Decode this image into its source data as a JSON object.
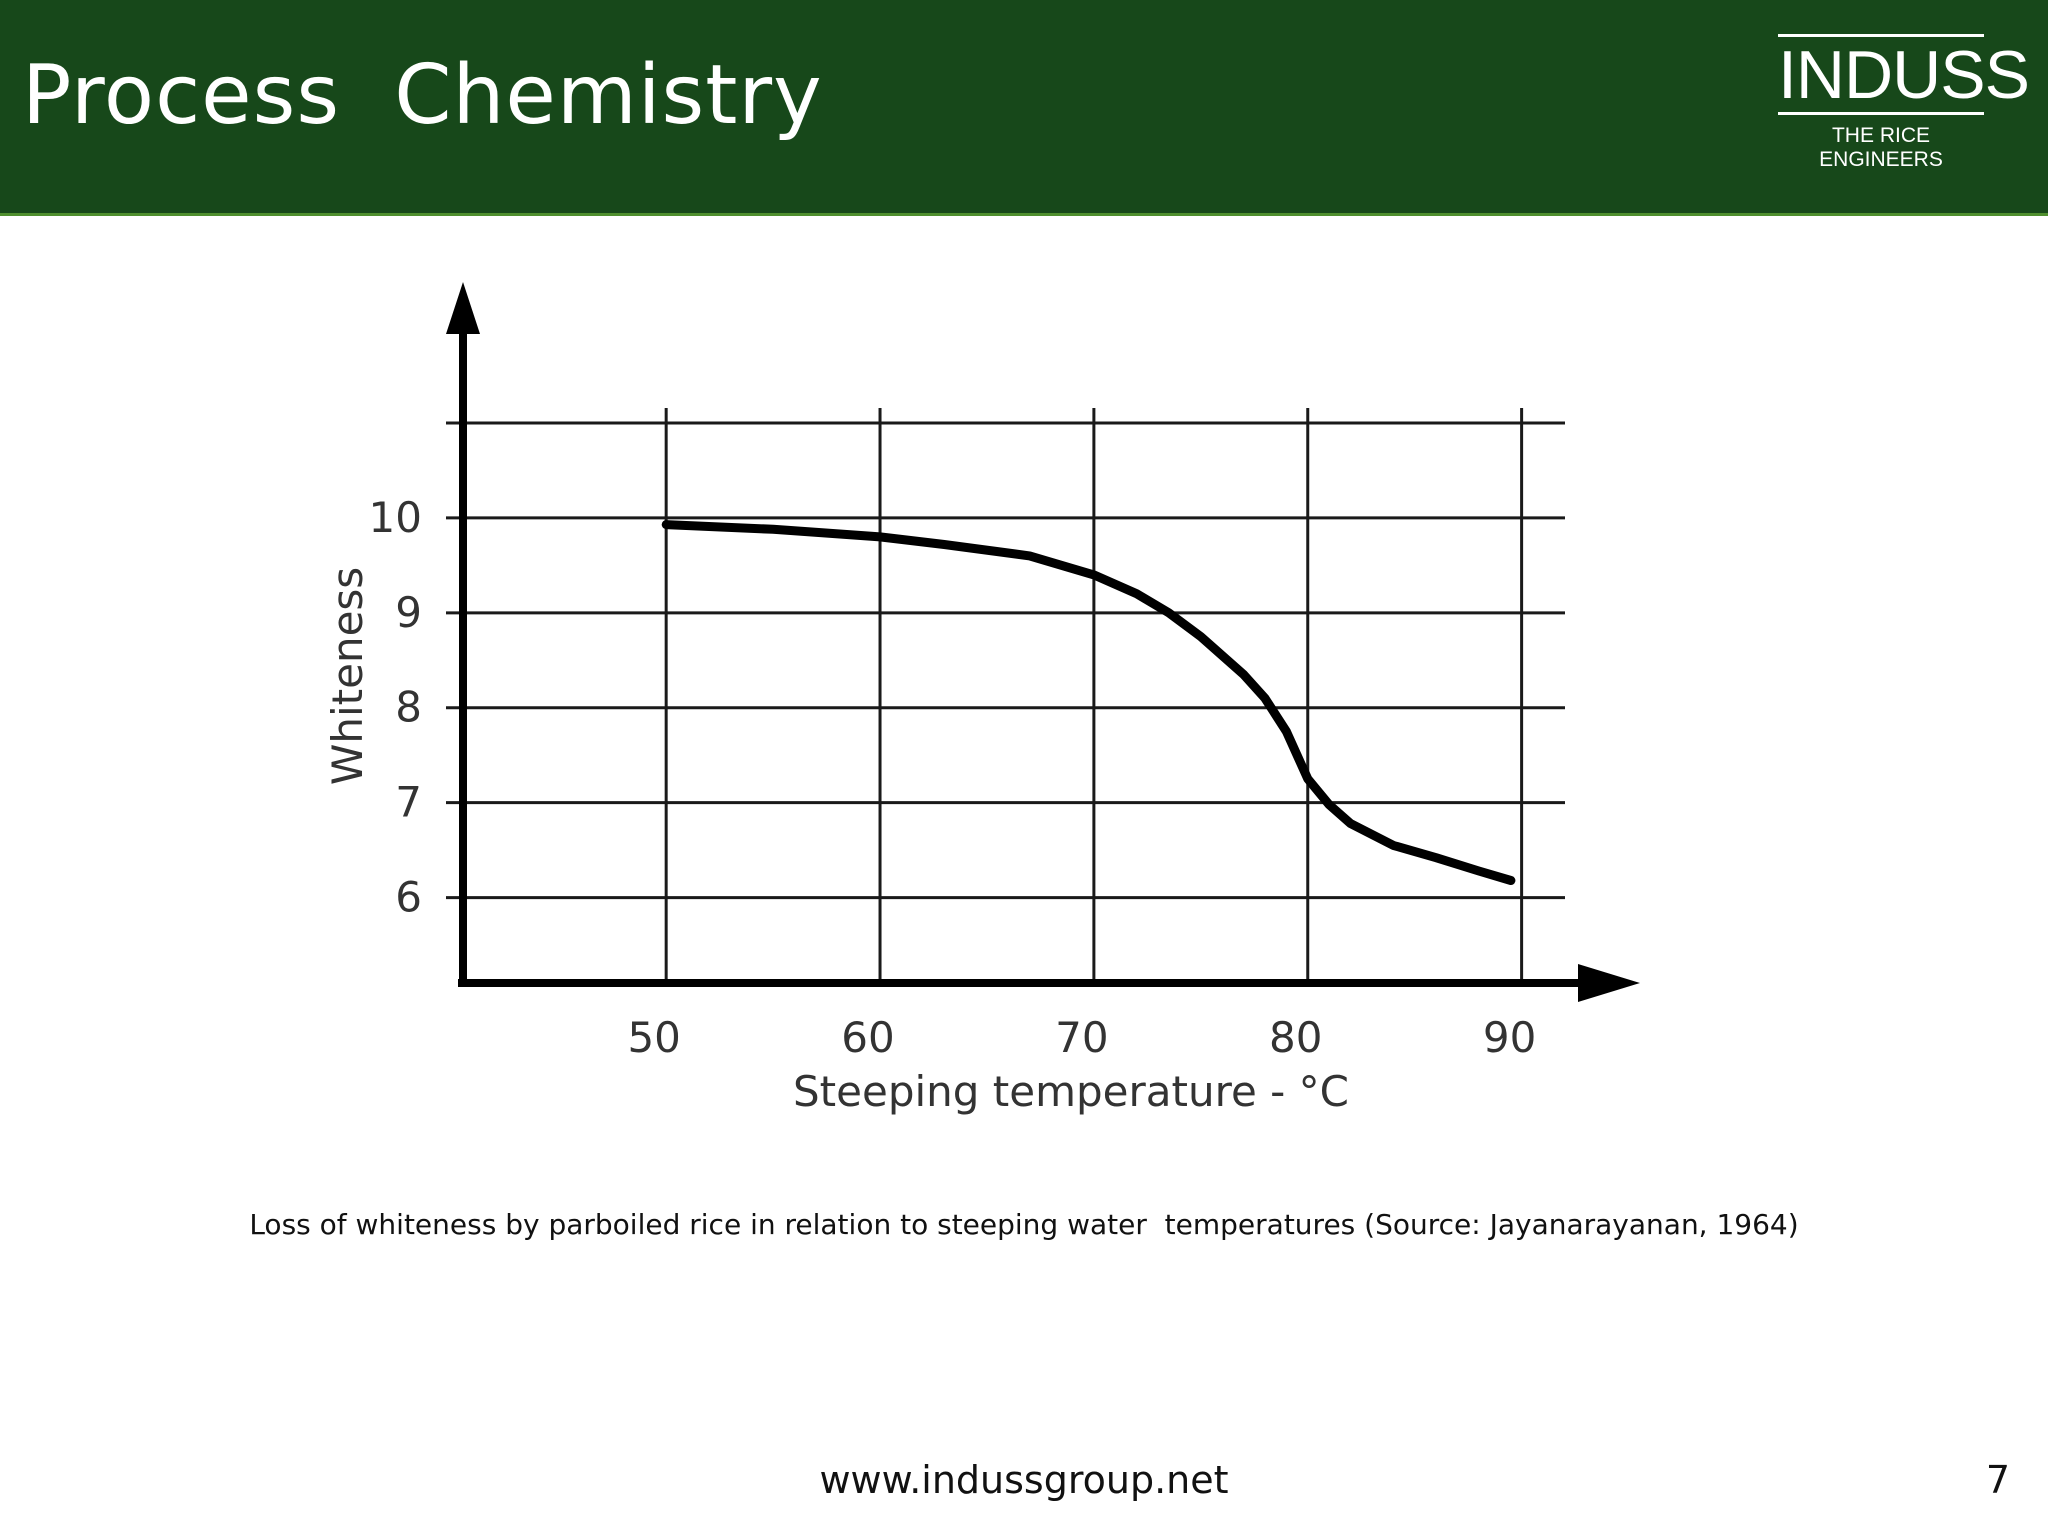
{
  "slide": {
    "title": "Process  Chemistry",
    "logo_name": "INDUSS",
    "logo_tagline": "THE RICE ENGINEERS",
    "caption": "Loss of whiteness by parboiled rice in relation to steeping water  temperatures (Source: Jayanarayanan, 1964)",
    "footer_url": "www.indussgroup.net",
    "page_number": "7"
  },
  "colors": {
    "header_bg": "#17481a",
    "header_border": "#4f8f2e",
    "text": "#111111",
    "axis_labels": "#333333"
  },
  "chart_data": {
    "type": "line",
    "title": "",
    "xlabel": "Steeping temperature - °C",
    "ylabel": "Whiteness",
    "xlim": [
      40.5,
      91
    ],
    "ylim": [
      5.1,
      11
    ],
    "x_ticks": [
      50,
      60,
      70,
      80,
      90
    ],
    "y_ticks": [
      6,
      7,
      8,
      9,
      10
    ],
    "x_gridlines": [
      50,
      60,
      70,
      80,
      90
    ],
    "y_gridlines": [
      6,
      7,
      8,
      9,
      10,
      11
    ],
    "grid": true,
    "series": [
      {
        "x": [
          50,
          55,
          60,
          63,
          67,
          70,
          72,
          73.5,
          75,
          77,
          78,
          79,
          80,
          81,
          82,
          84,
          86,
          88,
          89.5
        ],
        "values": [
          9.93,
          9.88,
          9.8,
          9.72,
          9.6,
          9.4,
          9.2,
          9.0,
          8.75,
          8.35,
          8.1,
          7.75,
          7.25,
          6.98,
          6.78,
          6.55,
          6.42,
          6.28,
          6.18
        ]
      }
    ]
  }
}
